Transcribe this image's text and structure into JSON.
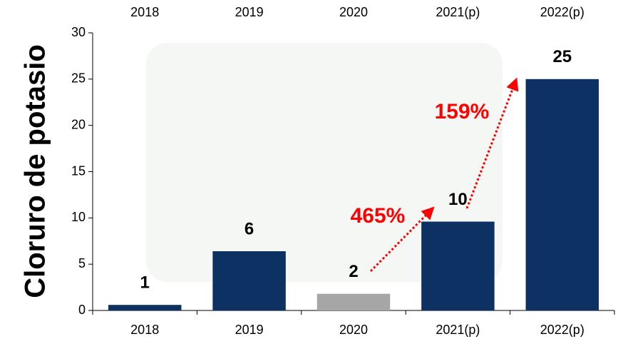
{
  "chart_data": {
    "type": "bar",
    "y_label": "Cloruro de potasio",
    "categories": [
      "2018",
      "2019",
      "2020",
      "2021(p)",
      "2022(p)"
    ],
    "values": [
      0.6,
      6.4,
      1.8,
      9.6,
      25
    ],
    "value_labels": [
      "1",
      "6",
      "2",
      "10",
      "25"
    ],
    "colors": [
      "#0d3163",
      "#0d3163",
      "#a6a6a6",
      "#0d3163",
      "#0d3163"
    ],
    "ylim": [
      0,
      30
    ],
    "yticks": [
      0,
      5,
      10,
      15,
      20,
      25,
      30
    ],
    "grid": false,
    "annotations": [
      "465%",
      "159%"
    ],
    "annotation_color": "#ff0000"
  }
}
